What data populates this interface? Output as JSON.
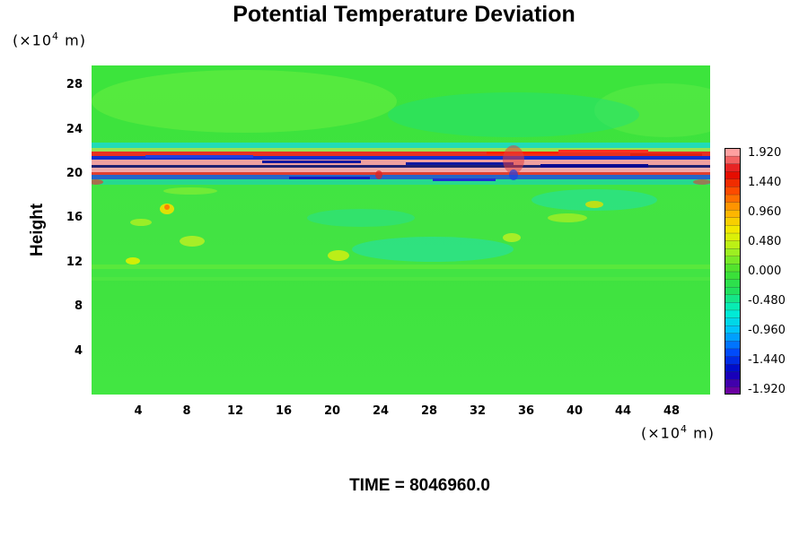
{
  "chart_data": {
    "type": "heatmap",
    "title": "Potential Temperature Deviation",
    "ylabel": "Height",
    "y_unit_prefix": "(×10",
    "y_unit_exp": "4",
    "y_unit_suffix": " m)",
    "x_unit_prefix": "(×10",
    "x_unit_exp": "4",
    "x_unit_suffix": " m)",
    "xlim": [
      0,
      51.1
    ],
    "ylim": [
      0,
      30.3
    ],
    "x_ticks": [
      "4",
      "8",
      "12",
      "16",
      "20",
      "24",
      "28",
      "32",
      "36",
      "40",
      "44",
      "48"
    ],
    "y_ticks": [
      "4",
      "8",
      "12",
      "16",
      "20",
      "24",
      "28"
    ],
    "colorbar_labels": [
      "1.920",
      "1.440",
      "0.960",
      "0.480",
      "0.000",
      "-0.480",
      "-0.960",
      "-1.440",
      "-1.920"
    ],
    "colorbar_range": [
      -1.92,
      1.92
    ],
    "colorbar_colors": [
      "#6a00a0",
      "#0000c0",
      "#0050ff",
      "#00bfff",
      "#00f0d0",
      "#20e060",
      "#40e030",
      "#a0f020",
      "#f0f000",
      "#ffb000",
      "#ff5000",
      "#e00000",
      "#ffa0a0"
    ],
    "background_value": 0.0,
    "features": [
      {
        "description": "strong oscillating layer",
        "height_range": [
          19.5,
          22.0
        ]
      },
      {
        "description": "weak disturbances",
        "height_range": [
          10.5,
          18.5
        ]
      }
    ],
    "footer": "TIME = 8046960.0"
  }
}
